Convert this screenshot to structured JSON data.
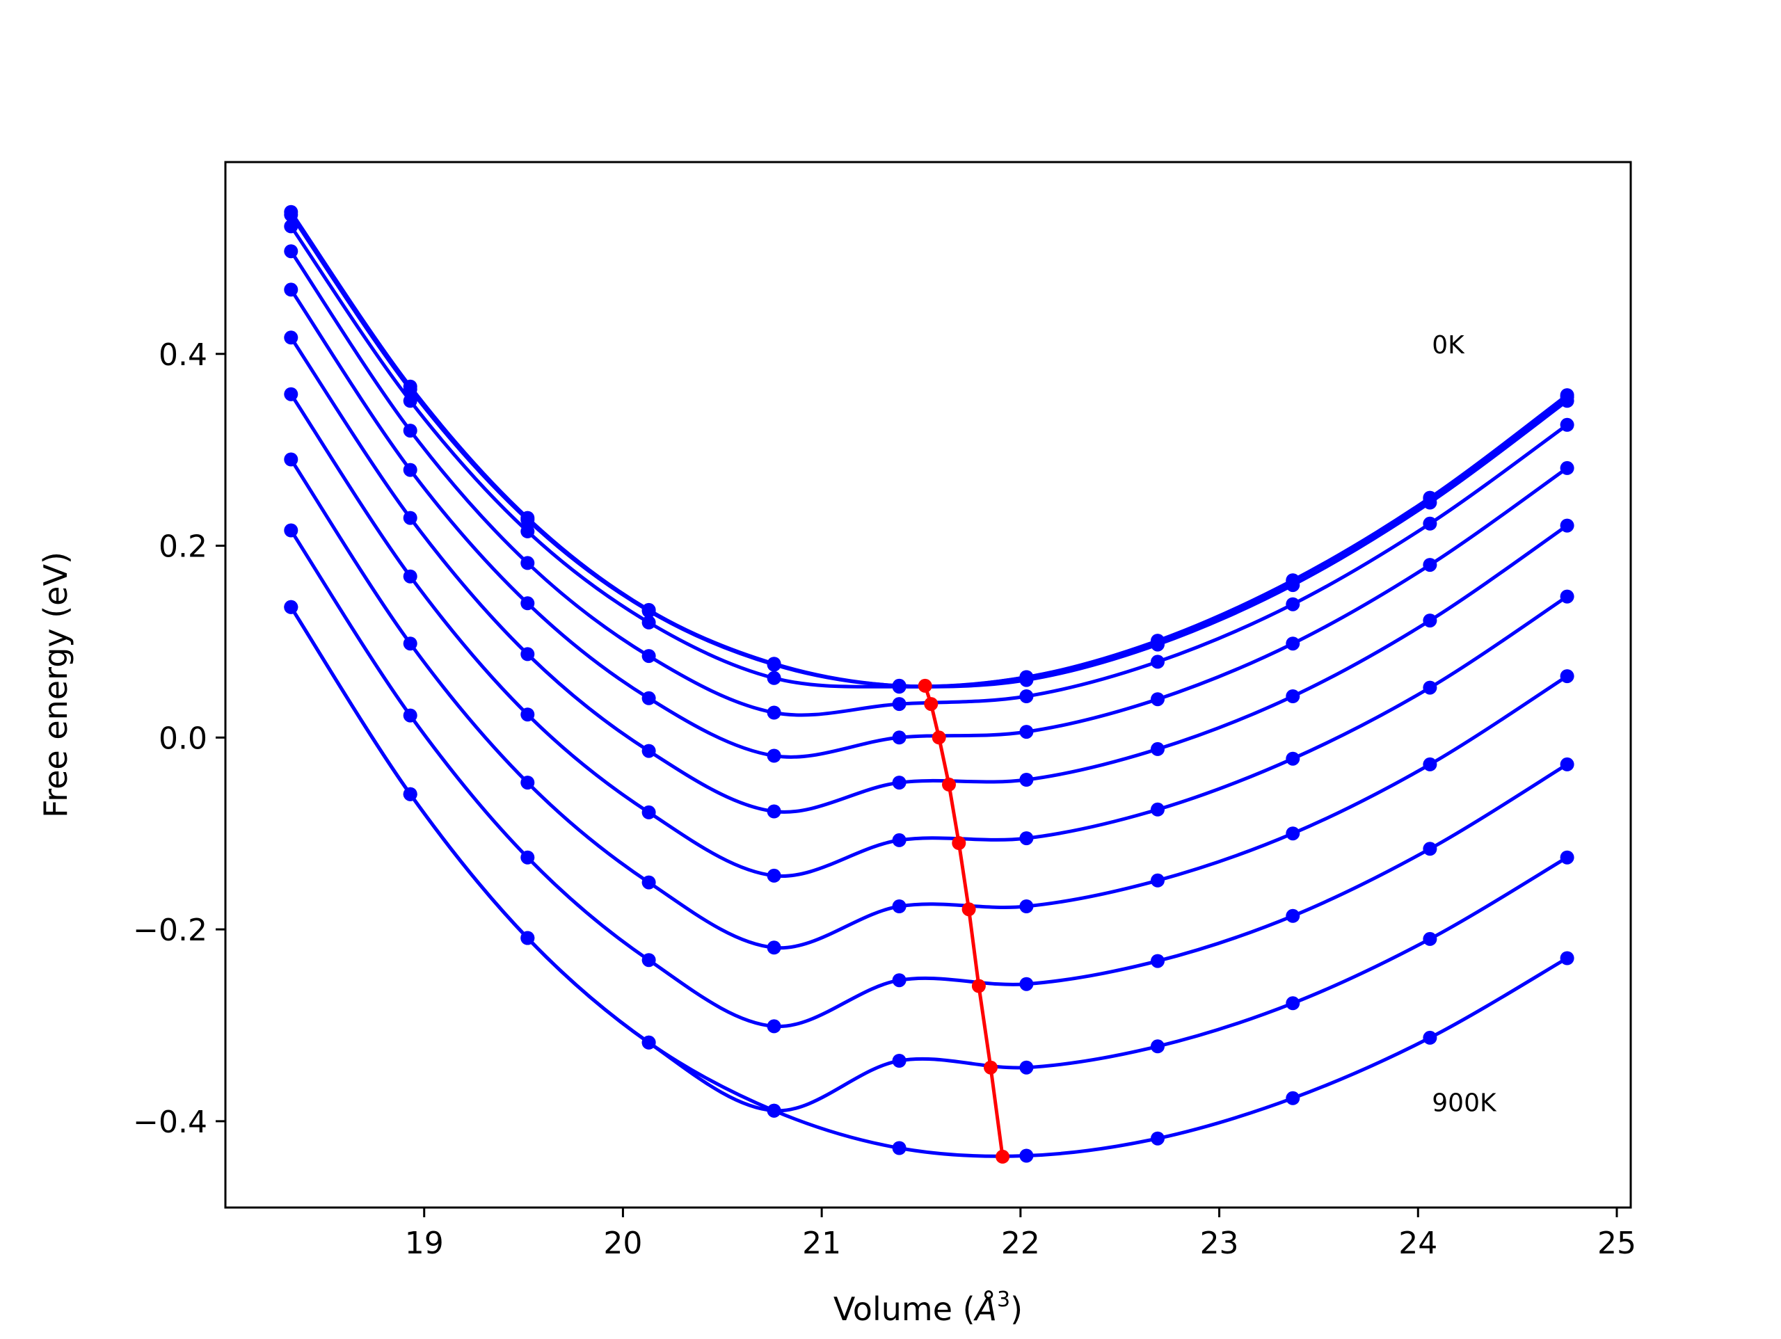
{
  "chart_data": {
    "type": "line",
    "title": "",
    "xlabel_text": "Volume (",
    "xlabel_unit_symbol": "Å",
    "xlabel_unit_exp": "3",
    "xlabel_close": ")",
    "ylabel": "Free energy (eV)",
    "xlim": [
      18.0,
      25.07
    ],
    "ylim": [
      -0.49,
      0.6
    ],
    "xticks": [
      19,
      20,
      21,
      22,
      23,
      24,
      25
    ],
    "xtick_labels": [
      "19",
      "20",
      "21",
      "22",
      "23",
      "24",
      "25"
    ],
    "yticks": [
      -0.4,
      -0.2,
      0.0,
      0.2,
      0.4
    ],
    "ytick_labels": [
      "−0.4",
      "−0.2",
      "0.0",
      "0.2",
      "0.4"
    ],
    "grid": false,
    "annotations": [
      {
        "text": "0K",
        "x": 24.07,
        "y": 0.41
      },
      {
        "text": "900K",
        "x": 24.07,
        "y": -0.38
      }
    ],
    "colors": {
      "curves": "#0000ff",
      "minimum_path": "#ff0000"
    },
    "volumes": [
      18.33,
      18.93,
      19.52,
      20.13,
      20.76,
      21.39,
      22.03,
      22.69,
      23.37,
      24.06,
      24.75
    ],
    "series": [
      {
        "values": [
          0.548,
          0.366,
          0.229,
          0.133,
          0.077,
          0.054,
          0.063,
          0.101,
          0.164,
          0.25,
          0.357
        ]
      },
      {
        "values": [
          0.545,
          0.363,
          0.227,
          0.132,
          0.076,
          0.054,
          0.063,
          0.1,
          0.163,
          0.249,
          0.355
        ]
      },
      {
        "values": [
          0.533,
          0.351,
          0.215,
          0.12,
          0.062,
          0.053,
          0.06,
          0.097,
          0.159,
          0.245,
          0.351
        ]
      },
      {
        "values": [
          0.507,
          0.32,
          0.182,
          0.085,
          0.026,
          0.035,
          0.043,
          0.079,
          0.139,
          0.223,
          0.326
        ]
      },
      {
        "values": [
          0.467,
          0.279,
          0.14,
          0.041,
          -0.019,
          0.0,
          0.006,
          0.04,
          0.098,
          0.18,
          0.281
        ]
      },
      {
        "values": [
          0.417,
          0.229,
          0.087,
          -0.014,
          -0.077,
          -0.047,
          -0.044,
          -0.012,
          0.043,
          0.122,
          0.221
        ]
      },
      {
        "values": [
          0.358,
          0.168,
          0.024,
          -0.078,
          -0.144,
          -0.107,
          -0.105,
          -0.075,
          -0.022,
          0.052,
          0.147
        ]
      },
      {
        "values": [
          0.29,
          0.098,
          -0.047,
          -0.151,
          -0.219,
          -0.176,
          -0.176,
          -0.149,
          -0.1,
          -0.028,
          0.064
        ]
      },
      {
        "values": [
          0.216,
          0.023,
          -0.125,
          -0.232,
          -0.301,
          -0.253,
          -0.257,
          -0.233,
          -0.186,
          -0.116,
          -0.028
        ]
      },
      {
        "values": [
          0.136,
          -0.059,
          -0.209,
          -0.318,
          -0.389,
          -0.337,
          -0.344,
          -0.322,
          -0.277,
          -0.21,
          -0.125
        ]
      },
      {
        "values": [
          0.136,
          -0.059,
          -0.209,
          -0.318,
          -0.389,
          -0.428,
          -0.436,
          -0.418,
          -0.376,
          -0.313,
          -0.23
        ]
      }
    ],
    "minimum_path": {
      "x": [
        21.52,
        21.55,
        21.59,
        21.64,
        21.69,
        21.74,
        21.79,
        21.85,
        21.91
      ],
      "y": [
        0.054,
        0.035,
        0.0,
        -0.049,
        -0.11,
        -0.179,
        -0.259,
        -0.344,
        -0.437
      ]
    }
  }
}
